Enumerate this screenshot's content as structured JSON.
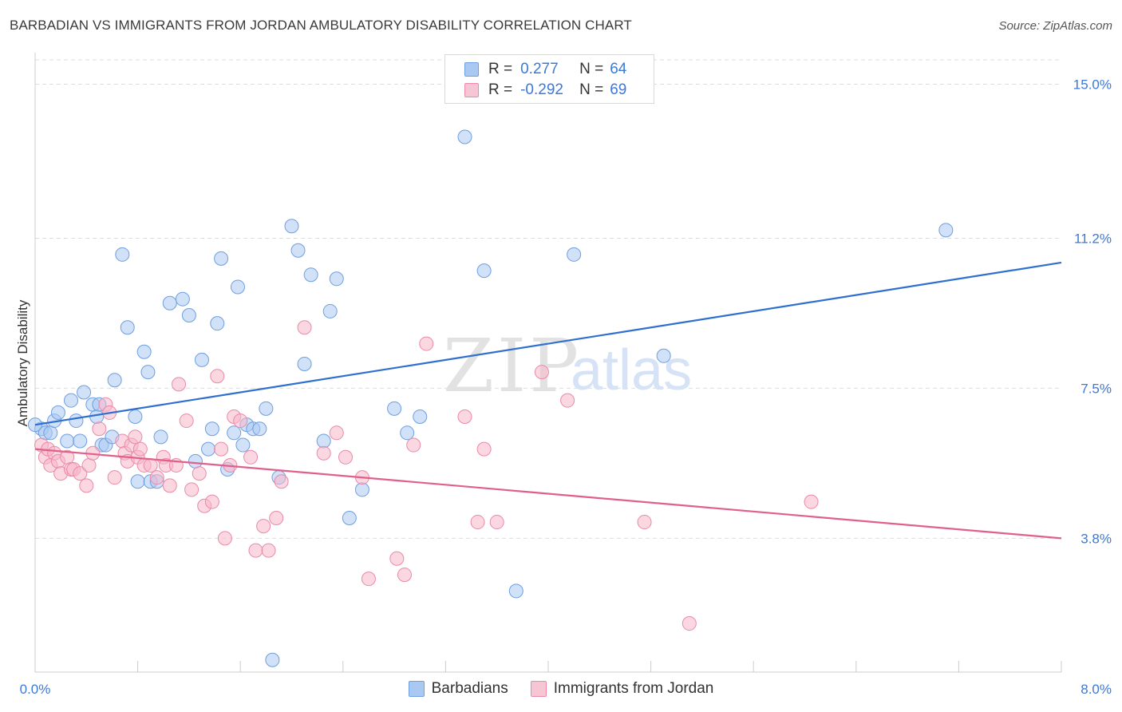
{
  "title": "BARBADIAN VS IMMIGRANTS FROM JORDAN AMBULATORY DISABILITY CORRELATION CHART",
  "source": "Source: ZipAtlas.com",
  "watermark": {
    "zip": "ZIP",
    "atlas": "atlas"
  },
  "colors": {
    "blue_fill": "#a9c8f2",
    "blue_stroke": "#6e9fe0",
    "blue_line": "#2f6fcf",
    "pink_fill": "#f7b7ca",
    "pink_stroke": "#ea8aa8",
    "pink_line": "#e0608c",
    "axis_label": "#3c78d8",
    "grid": "#dddddd"
  },
  "legend": {
    "rows": [
      {
        "r_label": "R =",
        "r_value": "0.277",
        "n_label": "N =",
        "n_value": "64"
      },
      {
        "r_label": "R =",
        "r_value": "-0.292",
        "n_label": "N =",
        "n_value": "69"
      }
    ]
  },
  "bottom_legend": [
    "Barbadians",
    "Immigrants from Jordan"
  ],
  "chart_data": {
    "type": "scatter",
    "ylabel": "Ambulatory Disability",
    "xlim": [
      0,
      8
    ],
    "ylim": [
      0.5,
      15.6
    ],
    "x_tick_labels": [
      "0.0%",
      "8.0%"
    ],
    "y_ticks": [
      {
        "value": 3.8,
        "label": "3.8%"
      },
      {
        "value": 7.5,
        "label": "7.5%"
      },
      {
        "value": 11.2,
        "label": "11.2%"
      },
      {
        "value": 15.0,
        "label": "15.0%"
      }
    ],
    "grid": "horizontal dashed",
    "legend_placement": "top-center",
    "series": [
      {
        "name": "Barbadians",
        "trend": {
          "x": [
            0,
            8
          ],
          "y": [
            6.6,
            10.6
          ]
        },
        "points": [
          [
            0.05,
            6.5
          ],
          [
            0.08,
            6.4
          ],
          [
            0.12,
            6.4
          ],
          [
            0.15,
            6.7
          ],
          [
            0.18,
            6.9
          ],
          [
            0.28,
            7.2
          ],
          [
            0.25,
            6.2
          ],
          [
            0.32,
            6.7
          ],
          [
            0.35,
            6.2
          ],
          [
            0.38,
            7.4
          ],
          [
            0.45,
            7.1
          ],
          [
            0.48,
            6.8
          ],
          [
            0.5,
            7.1
          ],
          [
            0.52,
            6.1
          ],
          [
            0.55,
            6.1
          ],
          [
            0.6,
            6.3
          ],
          [
            0.62,
            7.7
          ],
          [
            0.68,
            10.8
          ],
          [
            0.72,
            9.0
          ],
          [
            0.78,
            6.8
          ],
          [
            0.8,
            5.2
          ],
          [
            0.85,
            8.4
          ],
          [
            0.88,
            7.9
          ],
          [
            0.9,
            5.2
          ],
          [
            0.95,
            5.2
          ],
          [
            0.98,
            6.3
          ],
          [
            1.05,
            9.6
          ],
          [
            1.15,
            9.7
          ],
          [
            1.2,
            9.3
          ],
          [
            1.25,
            5.7
          ],
          [
            1.3,
            8.2
          ],
          [
            1.35,
            6.0
          ],
          [
            1.38,
            6.5
          ],
          [
            1.42,
            9.1
          ],
          [
            1.45,
            10.7
          ],
          [
            1.5,
            5.5
          ],
          [
            1.55,
            6.4
          ],
          [
            1.58,
            10.0
          ],
          [
            1.62,
            6.1
          ],
          [
            1.65,
            6.6
          ],
          [
            1.7,
            6.5
          ],
          [
            1.75,
            6.5
          ],
          [
            1.8,
            7.0
          ],
          [
            1.9,
            5.3
          ],
          [
            2.0,
            11.5
          ],
          [
            2.05,
            10.9
          ],
          [
            2.1,
            8.1
          ],
          [
            2.15,
            10.3
          ],
          [
            2.3,
            9.4
          ],
          [
            2.35,
            10.2
          ],
          [
            2.45,
            4.3
          ],
          [
            2.55,
            5.0
          ],
          [
            2.8,
            7.0
          ],
          [
            2.9,
            6.4
          ],
          [
            3.0,
            6.8
          ],
          [
            3.35,
            13.7
          ],
          [
            3.5,
            10.4
          ],
          [
            3.75,
            2.5
          ],
          [
            4.2,
            10.8
          ],
          [
            4.9,
            8.3
          ],
          [
            7.1,
            11.4
          ],
          [
            0.0,
            6.6
          ],
          [
            1.85,
            0.8
          ],
          [
            2.25,
            6.2
          ]
        ]
      },
      {
        "name": "Immigrants from Jordan",
        "trend": {
          "x": [
            0,
            8
          ],
          "y": [
            6.0,
            3.8
          ]
        },
        "points": [
          [
            0.05,
            6.1
          ],
          [
            0.08,
            5.8
          ],
          [
            0.1,
            6.0
          ],
          [
            0.12,
            5.6
          ],
          [
            0.15,
            5.9
          ],
          [
            0.18,
            5.7
          ],
          [
            0.2,
            5.4
          ],
          [
            0.25,
            5.8
          ],
          [
            0.28,
            5.5
          ],
          [
            0.3,
            5.5
          ],
          [
            0.35,
            5.4
          ],
          [
            0.4,
            5.1
          ],
          [
            0.42,
            5.6
          ],
          [
            0.45,
            5.9
          ],
          [
            0.5,
            6.5
          ],
          [
            0.55,
            7.1
          ],
          [
            0.58,
            6.9
          ],
          [
            0.62,
            5.3
          ],
          [
            0.68,
            6.2
          ],
          [
            0.7,
            5.9
          ],
          [
            0.72,
            5.7
          ],
          [
            0.75,
            6.1
          ],
          [
            0.78,
            6.3
          ],
          [
            0.8,
            5.8
          ],
          [
            0.82,
            6.0
          ],
          [
            0.85,
            5.6
          ],
          [
            0.9,
            5.6
          ],
          [
            0.95,
            5.3
          ],
          [
            1.0,
            5.8
          ],
          [
            1.02,
            5.6
          ],
          [
            1.05,
            5.1
          ],
          [
            1.1,
            5.6
          ],
          [
            1.12,
            7.6
          ],
          [
            1.18,
            6.7
          ],
          [
            1.22,
            5.0
          ],
          [
            1.28,
            5.4
          ],
          [
            1.32,
            4.6
          ],
          [
            1.38,
            4.7
          ],
          [
            1.42,
            7.8
          ],
          [
            1.45,
            6.0
          ],
          [
            1.48,
            3.8
          ],
          [
            1.52,
            5.6
          ],
          [
            1.55,
            6.8
          ],
          [
            1.6,
            6.7
          ],
          [
            1.68,
            5.8
          ],
          [
            1.72,
            3.5
          ],
          [
            1.78,
            4.1
          ],
          [
            1.82,
            3.5
          ],
          [
            1.88,
            4.3
          ],
          [
            1.92,
            5.2
          ],
          [
            2.1,
            9.0
          ],
          [
            2.25,
            5.9
          ],
          [
            2.35,
            6.4
          ],
          [
            2.42,
            5.8
          ],
          [
            2.55,
            5.3
          ],
          [
            2.6,
            2.8
          ],
          [
            2.82,
            3.3
          ],
          [
            2.88,
            2.9
          ],
          [
            2.95,
            6.1
          ],
          [
            3.05,
            8.6
          ],
          [
            3.35,
            6.8
          ],
          [
            3.45,
            4.2
          ],
          [
            3.5,
            6.0
          ],
          [
            3.6,
            4.2
          ],
          [
            3.95,
            7.9
          ],
          [
            4.15,
            7.2
          ],
          [
            4.75,
            4.2
          ],
          [
            5.1,
            1.7
          ],
          [
            6.05,
            4.7
          ]
        ]
      }
    ]
  }
}
